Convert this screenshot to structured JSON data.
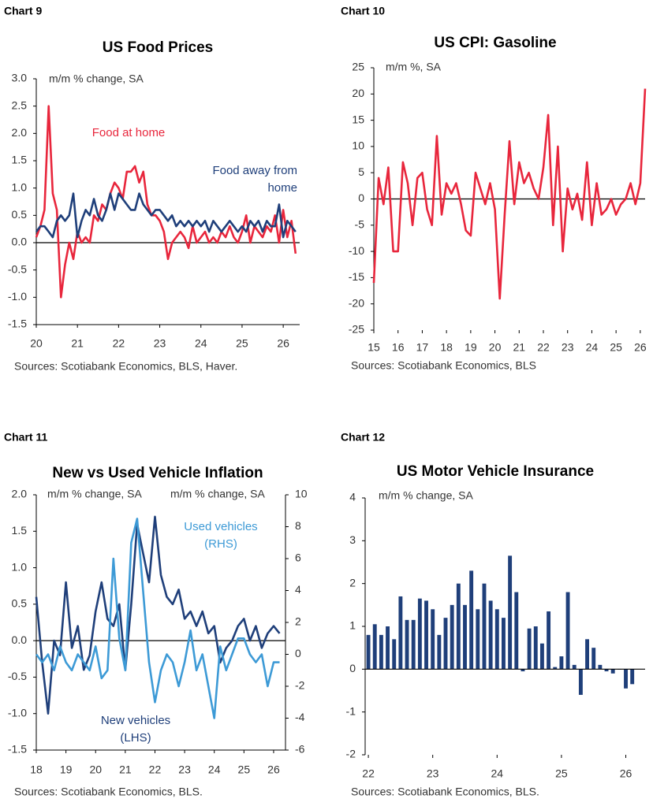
{
  "chart_data": [
    {
      "type": "line",
      "label": "Chart 9",
      "title": "US Food Prices",
      "unit": "m/m % change, SA",
      "source": "Sources: Scotiabank Economics, BLS, Haver.",
      "x": [
        20.0,
        20.1,
        20.2,
        20.3,
        20.4,
        20.5,
        20.6,
        20.7,
        20.8,
        20.9,
        21.0,
        21.1,
        21.2,
        21.3,
        21.4,
        21.5,
        21.6,
        21.7,
        21.8,
        21.9,
        22.0,
        22.1,
        22.2,
        22.3,
        22.4,
        22.5,
        22.6,
        22.7,
        22.8,
        22.9,
        23.0,
        23.1,
        23.2,
        23.3,
        23.4,
        23.5,
        23.6,
        23.7,
        23.8,
        23.9,
        24.0,
        24.1,
        24.2,
        24.3,
        24.4,
        24.5,
        24.6,
        24.7,
        24.8,
        24.9,
        25.0,
        25.1,
        25.2,
        25.3,
        25.4,
        25.5,
        25.6,
        25.7,
        25.8,
        25.9,
        26.0,
        26.1,
        26.2,
        26.3
      ],
      "series": [
        {
          "name": "Food at home",
          "color": "#e8263c",
          "values": [
            0.1,
            0.3,
            0.6,
            2.5,
            0.9,
            0.6,
            -1.0,
            -0.4,
            0.0,
            -0.3,
            0.2,
            0.0,
            0.1,
            0.0,
            0.5,
            0.4,
            0.7,
            0.6,
            0.9,
            1.1,
            1.0,
            0.8,
            1.3,
            1.3,
            1.4,
            1.1,
            1.3,
            0.7,
            0.5,
            0.5,
            0.4,
            0.2,
            -0.3,
            0.0,
            0.1,
            0.2,
            0.1,
            -0.1,
            0.3,
            0.0,
            0.1,
            0.2,
            0.0,
            0.1,
            0.0,
            0.2,
            0.1,
            0.3,
            0.1,
            0.0,
            0.2,
            0.5,
            0.0,
            0.3,
            0.2,
            0.1,
            0.3,
            0.2,
            0.5,
            0.0,
            0.6,
            0.1,
            0.4,
            -0.2
          ]
        },
        {
          "name": "Food away from home",
          "color": "#1f3f7a",
          "values": [
            0.2,
            0.3,
            0.3,
            0.2,
            0.1,
            0.4,
            0.5,
            0.4,
            0.5,
            0.9,
            0.1,
            0.4,
            0.6,
            0.5,
            0.8,
            0.5,
            0.4,
            0.6,
            0.9,
            0.6,
            0.9,
            0.8,
            0.7,
            0.6,
            0.6,
            0.9,
            0.7,
            0.6,
            0.5,
            0.6,
            0.6,
            0.5,
            0.4,
            0.5,
            0.3,
            0.4,
            0.3,
            0.4,
            0.3,
            0.4,
            0.3,
            0.4,
            0.2,
            0.4,
            0.3,
            0.2,
            0.3,
            0.4,
            0.3,
            0.2,
            0.3,
            0.2,
            0.4,
            0.3,
            0.4,
            0.2,
            0.4,
            0.3,
            0.3,
            0.7,
            0.1,
            0.4,
            0.3,
            0.2
          ]
        }
      ],
      "xlim": [
        20,
        26.4
      ],
      "xticks": [
        20,
        21,
        22,
        23,
        24,
        25,
        26
      ],
      "ylim": [
        -1.5,
        3.0
      ],
      "yticks": [
        -1.5,
        {
          "value": -1,
          "label": "-1.0"
        },
        -0.5,
        {
          "value": 0,
          "label": "0.0"
        },
        0.5,
        {
          "value": 1,
          "label": "1.0"
        },
        1.5,
        {
          "value": 2,
          "label": "2.0"
        },
        2.5,
        {
          "value": 3,
          "label": "3.0"
        }
      ],
      "zero_line": true
    },
    {
      "type": "line",
      "label": "Chart 10",
      "title": "US CPI: Gasoline",
      "unit": "m/m %, SA",
      "source": "Sources: Scotiabank Economics, BLS",
      "x": [
        15.0,
        15.2,
        15.4,
        15.6,
        15.8,
        16.0,
        16.2,
        16.4,
        16.6,
        16.8,
        17.0,
        17.2,
        17.4,
        17.6,
        17.8,
        18.0,
        18.2,
        18.4,
        18.6,
        18.8,
        19.0,
        19.2,
        19.4,
        19.6,
        19.8,
        20.0,
        20.2,
        20.4,
        20.6,
        20.8,
        21.0,
        21.2,
        21.4,
        21.6,
        21.8,
        22.0,
        22.2,
        22.4,
        22.6,
        22.8,
        23.0,
        23.2,
        23.4,
        23.6,
        23.8,
        24.0,
        24.2,
        24.4,
        24.6,
        24.8,
        25.0,
        25.2,
        25.4,
        25.6,
        25.8,
        26.0,
        26.2
      ],
      "series": [
        {
          "name": "Gasoline",
          "color": "#e8263c",
          "values": [
            -16,
            4,
            -1,
            6,
            -10,
            -10,
            7,
            3,
            -5,
            4,
            5,
            -2,
            -5,
            12,
            -3,
            3,
            1,
            3,
            -1,
            -6,
            -7,
            5,
            2,
            -1,
            3,
            -2,
            -19,
            -3,
            11,
            -1,
            7,
            3,
            5,
            2,
            0,
            6,
            16,
            -5,
            10,
            -10,
            2,
            -2,
            1,
            -4,
            7,
            -5,
            3,
            -3,
            -2,
            0,
            -3,
            -1,
            0,
            3,
            -1,
            3,
            21
          ]
        }
      ],
      "xlim": [
        15,
        26.2
      ],
      "xticks": [
        15,
        16,
        17,
        18,
        19,
        20,
        21,
        22,
        23,
        24,
        25,
        26
      ],
      "ylim": [
        -25,
        25
      ],
      "yticks": [
        -25,
        -20,
        -15,
        -10,
        -5,
        0,
        5,
        10,
        15,
        20,
        25
      ],
      "zero_line": true
    },
    {
      "type": "line",
      "label": "Chart 11",
      "title": "New vs Used Vehicle Inflation",
      "unit": "m/m % change, SA",
      "unit_right": "m/m % change, SA",
      "source": "Sources: Scotiabank Economics, BLS.",
      "x": [
        18.0,
        18.2,
        18.4,
        18.6,
        18.8,
        19.0,
        19.2,
        19.4,
        19.6,
        19.8,
        20.0,
        20.2,
        20.4,
        20.6,
        20.8,
        21.0,
        21.2,
        21.4,
        21.6,
        21.8,
        22.0,
        22.2,
        22.4,
        22.6,
        22.8,
        23.0,
        23.2,
        23.4,
        23.6,
        23.8,
        24.0,
        24.2,
        24.4,
        24.6,
        24.8,
        25.0,
        25.2,
        25.4,
        25.6,
        25.8,
        26.0,
        26.2
      ],
      "series": [
        {
          "name": "New vehicles (LHS)",
          "color": "#1f3f7a",
          "values": [
            0.6,
            -0.3,
            -1.0,
            0.0,
            -0.2,
            0.8,
            -0.1,
            0.2,
            -0.4,
            -0.2,
            0.4,
            0.8,
            0.3,
            0.2,
            0.5,
            -0.4,
            0.5,
            1.6,
            1.2,
            0.8,
            1.7,
            0.9,
            0.6,
            0.5,
            0.7,
            0.3,
            0.4,
            0.2,
            0.4,
            0.1,
            0.2,
            -0.3,
            -0.1,
            0.0,
            0.2,
            0.3,
            0.0,
            0.2,
            -0.1,
            0.1,
            0.2,
            0.1
          ]
        },
        {
          "name": "Used vehicles (RHS)",
          "color": "#3d9ad6",
          "axis": "y2",
          "values": [
            0,
            -0.5,
            0,
            -1,
            0.5,
            -0.5,
            -1,
            0,
            -0.5,
            -1,
            0.5,
            -1.5,
            -1,
            6,
            1,
            -1,
            7,
            8.5,
            4,
            -0.5,
            -3,
            -1,
            0,
            -0.5,
            -2,
            -0.5,
            1.5,
            -1,
            0,
            -2,
            -4,
            0.5,
            -1,
            0,
            1,
            1,
            0,
            -0.5,
            0,
            -2,
            -0.5,
            -0.5
          ]
        }
      ],
      "xlim": [
        18,
        26.4
      ],
      "xticks": [
        18,
        19,
        20,
        21,
        22,
        23,
        24,
        25,
        26
      ],
      "ylim": [
        -1.5,
        2.0
      ],
      "yticks": [
        -1.5,
        {
          "value": -1,
          "label": "-1.0"
        },
        -0.5,
        {
          "value": 0,
          "label": "0.0"
        },
        0.5,
        {
          "value": 1,
          "label": "1.0"
        },
        1.5,
        {
          "value": 2,
          "label": "2.0"
        }
      ],
      "y2lim": [
        -6,
        10
      ],
      "y2ticks": [
        -6,
        -4,
        -2,
        0,
        2,
        4,
        6,
        8,
        10
      ],
      "zero_line": true
    },
    {
      "type": "bar",
      "label": "Chart 12",
      "title": "US Motor Vehicle Insurance",
      "unit": "m/m % change, SA",
      "source": "Sources: Scotiabank Economics, BLS.",
      "x": [
        22.0,
        22.1,
        22.2,
        22.3,
        22.4,
        22.5,
        22.6,
        22.7,
        22.8,
        22.9,
        23.0,
        23.1,
        23.2,
        23.3,
        23.4,
        23.5,
        23.6,
        23.7,
        23.8,
        23.9,
        24.0,
        24.1,
        24.2,
        24.3,
        24.4,
        24.5,
        24.6,
        24.7,
        24.8,
        24.9,
        25.0,
        25.1,
        25.2,
        25.3,
        25.4,
        25.5,
        25.6,
        25.7,
        25.8,
        25.9,
        26.0,
        26.1
      ],
      "series": [
        {
          "name": "Motor vehicle insurance",
          "color": "#1f3f7a",
          "values": [
            0.8,
            1.05,
            0.8,
            1.0,
            0.7,
            1.7,
            1.15,
            1.15,
            1.65,
            1.6,
            1.4,
            0.8,
            1.2,
            1.5,
            2.0,
            1.5,
            2.3,
            1.4,
            2.0,
            1.6,
            1.4,
            1.2,
            2.65,
            1.8,
            -0.05,
            0.95,
            1.0,
            0.6,
            1.35,
            0.05,
            0.3,
            1.8,
            0.1,
            -0.6,
            0.7,
            0.5,
            0.1,
            -0.05,
            -0.1,
            0.0,
            -0.45,
            -0.35
          ]
        }
      ],
      "xlim": [
        21.95,
        26.3
      ],
      "xticks": [
        22,
        23,
        24,
        25,
        26
      ],
      "ylim": [
        -2,
        4
      ],
      "yticks": [
        -2,
        -1,
        0,
        1,
        2,
        3,
        4
      ],
      "zero_line": true
    }
  ]
}
